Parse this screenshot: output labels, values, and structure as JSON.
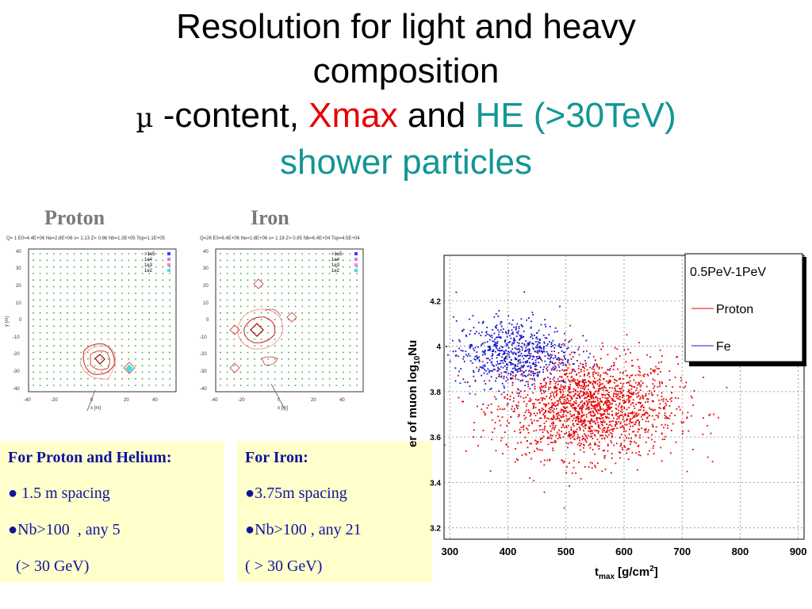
{
  "title": {
    "line1": "Resolution for light and heavy",
    "line2": "composition",
    "mu": "µ",
    "line3_a": " -content, ",
    "line3_x": "Xmax",
    "line3_b": " and ",
    "line3_he": "HE (>30TeV)",
    "line4": "shower particles"
  },
  "labels": {
    "proton": "Proton",
    "iron": "Iron"
  },
  "proton_plot": {
    "header": "Q= 1 E0=4.4E+06 Ne=2.8E+06 s= 1.13 Z= 0.86 Nb=1.3E+05 Top=1.1E+05",
    "legend": [
      ">1e5",
      "1e4",
      "1e3",
      "1e2"
    ],
    "xlabel": "x [m]",
    "ylabel": "y [m]"
  },
  "iron_plot": {
    "header": "Q=26 E0=6.4E+06 Ne=2.8E+06 s= 1.19 Z= 0.95 Nb=6.4E+04 Top=4.5E+04",
    "legend": [
      ">1e5",
      "1e4",
      "1e3",
      "1e2"
    ],
    "xlabel": "x [m]",
    "ylabel": "y [m]"
  },
  "proton_box": {
    "heading": "For Proton and Helium:",
    "line1": "● 1.5 m spacing",
    "line2": "●Nb>100  , any 5",
    "line3": "  (> 30 GeV)"
  },
  "iron_box": {
    "heading": "For Iron:",
    "line1": "●3.75m spacing",
    "line2": "●Nb>100 , any 21",
    "line3": "( > 30 GeV)"
  },
  "chart_data": [
    {
      "type": "scatter",
      "title": "",
      "legend_title": "0.5PeV-1PeV",
      "xlabel": "t_max [g/cm^2]",
      "ylabel": "er of muon log10Nu",
      "x_ticks": [
        "300",
        "400",
        "500",
        "600",
        "700",
        "800",
        "900"
      ],
      "y_ticks": [
        "3.2",
        "3.4",
        "3.6",
        "3.8",
        "4",
        "4.2"
      ],
      "xlim": [
        290,
        910
      ],
      "ylim": [
        3.15,
        4.4
      ],
      "grid": true,
      "legend_position": "top-right",
      "series": [
        {
          "name": "Proton",
          "color": "#e60000",
          "center": [
            540,
            3.73
          ],
          "spread": [
            75,
            0.11
          ]
        },
        {
          "name": "Fe",
          "color": "#1414cc",
          "center": [
            410,
            3.97
          ],
          "spread": [
            50,
            0.075
          ]
        }
      ],
      "colors": {
        "proton": "#e60000",
        "fe": "#1414cc"
      }
    }
  ]
}
